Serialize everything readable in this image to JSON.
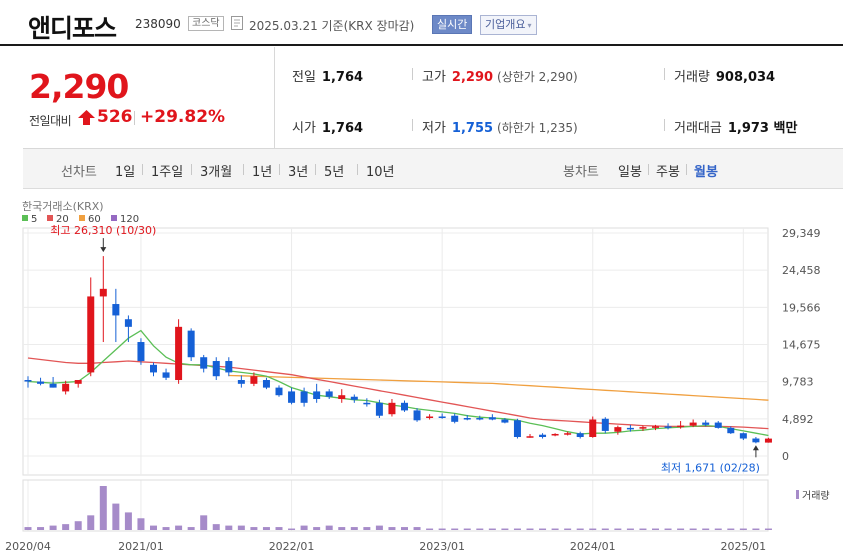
{
  "header": {
    "name": "앤디포스",
    "code": "238090",
    "market": "코스닥",
    "date": "2025.03.21  기준(KRX 장마감)",
    "realtime_btn": "실시간",
    "company_btn": "기업개요",
    "company_caret": "▾"
  },
  "quote": {
    "price": "2,290",
    "change_label": "전일대비",
    "change_amount": "526",
    "change_rate": "+29.82%",
    "prev_close_label": "전일",
    "prev_close": "1,764",
    "high_label": "고가",
    "high": "2,290",
    "upper_limit": "(상한가 2,290)",
    "volume_label": "거래량",
    "volume": "908,034",
    "open_label": "시가",
    "open": "1,764",
    "low_label": "저가",
    "low": "1,755",
    "lower_limit": "(하한가 1,235)",
    "amount_label": "거래대금",
    "amount": "1,973 백만"
  },
  "periods": {
    "line_label": "선차트",
    "line_items": [
      "1일",
      "1주일",
      "3개월",
      "1년",
      "3년",
      "5년",
      "10년"
    ],
    "candle_label": "봉차트",
    "candle_items": [
      "일봉",
      "주봉",
      "월봉"
    ],
    "active": "월봉"
  },
  "colors": {
    "up": "#e0151c",
    "down": "#1560d6",
    "ma5": "#5bbf56",
    "ma20": "#e25555",
    "ma60": "#f0a040",
    "ma120": "#9569c2",
    "volume": "#a68bc9"
  },
  "chart_data": {
    "type": "candlestick",
    "source": "한국거래소(KRX)",
    "legend": [
      {
        "name": "5",
        "color": "#5bbf56"
      },
      {
        "name": "20",
        "color": "#e25555"
      },
      {
        "name": "60",
        "color": "#f0a040"
      },
      {
        "name": "120",
        "color": "#9569c2"
      }
    ],
    "y_ticks": [
      29349,
      24458,
      19566,
      14675,
      9783,
      4892,
      0
    ],
    "y_tick_labels": [
      "29,349",
      "24,458",
      "19,566",
      "14,675",
      "9,783",
      "4,892",
      "0"
    ],
    "ylim": [
      0,
      29349
    ],
    "x_tick_labels": [
      {
        "label": "2020/04",
        "index": 0
      },
      {
        "label": "2021/01",
        "index": 9
      },
      {
        "label": "2022/01",
        "index": 21
      },
      {
        "label": "2023/01",
        "index": 33
      },
      {
        "label": "2024/01",
        "index": 45
      },
      {
        "label": "2025/01",
        "index": 57
      }
    ],
    "high_annotation": {
      "text": "최고 26,310 (10/30)",
      "index": 6,
      "value": 26310
    },
    "low_annotation": {
      "text": "최저 1,671 (02/28)",
      "index": 58,
      "value": 1671
    },
    "volume_label": "거래량",
    "candles": [
      {
        "o": 10000,
        "h": 10500,
        "l": 9000,
        "c": 9800
      },
      {
        "o": 9800,
        "h": 10300,
        "l": 9300,
        "c": 9500
      },
      {
        "o": 9500,
        "h": 10400,
        "l": 9000,
        "c": 9000
      },
      {
        "o": 8500,
        "h": 9900,
        "l": 8100,
        "c": 9500
      },
      {
        "o": 9500,
        "h": 10000,
        "l": 9000,
        "c": 10000
      },
      {
        "o": 11000,
        "h": 23500,
        "l": 10500,
        "c": 21000
      },
      {
        "o": 21000,
        "h": 26310,
        "l": 15000,
        "c": 22000
      },
      {
        "o": 20000,
        "h": 22000,
        "l": 15000,
        "c": 18500
      },
      {
        "o": 18000,
        "h": 18500,
        "l": 15000,
        "c": 17000
      },
      {
        "o": 15000,
        "h": 15500,
        "l": 12000,
        "c": 12500
      },
      {
        "o": 12000,
        "h": 12300,
        "l": 10500,
        "c": 11000
      },
      {
        "o": 11000,
        "h": 11500,
        "l": 10000,
        "c": 10300
      },
      {
        "o": 10000,
        "h": 18000,
        "l": 9500,
        "c": 17000
      },
      {
        "o": 16500,
        "h": 16800,
        "l": 12500,
        "c": 13000
      },
      {
        "o": 13000,
        "h": 13300,
        "l": 11000,
        "c": 11500
      },
      {
        "o": 12500,
        "h": 13000,
        "l": 10000,
        "c": 10500
      },
      {
        "o": 12500,
        "h": 13000,
        "l": 10500,
        "c": 11000
      },
      {
        "o": 10000,
        "h": 10600,
        "l": 9000,
        "c": 9500
      },
      {
        "o": 9500,
        "h": 11000,
        "l": 9200,
        "c": 10500
      },
      {
        "o": 10000,
        "h": 10300,
        "l": 8800,
        "c": 9000
      },
      {
        "o": 9000,
        "h": 9300,
        "l": 7800,
        "c": 8000
      },
      {
        "o": 8500,
        "h": 9000,
        "l": 6800,
        "c": 7000
      },
      {
        "o": 8500,
        "h": 9000,
        "l": 6500,
        "c": 7000
      },
      {
        "o": 8500,
        "h": 9500,
        "l": 7000,
        "c": 7500
      },
      {
        "o": 8500,
        "h": 8800,
        "l": 7500,
        "c": 7800
      },
      {
        "o": 7500,
        "h": 8800,
        "l": 7000,
        "c": 8000
      },
      {
        "o": 7800,
        "h": 8100,
        "l": 7000,
        "c": 7400
      },
      {
        "o": 7000,
        "h": 7600,
        "l": 6500,
        "c": 6800
      },
      {
        "o": 7000,
        "h": 7400,
        "l": 5000,
        "c": 5300
      },
      {
        "o": 5500,
        "h": 7500,
        "l": 5200,
        "c": 7000
      },
      {
        "o": 7000,
        "h": 7300,
        "l": 5800,
        "c": 6000
      },
      {
        "o": 6000,
        "h": 6300,
        "l": 4500,
        "c": 4700
      },
      {
        "o": 5000,
        "h": 5500,
        "l": 4800,
        "c": 5200
      },
      {
        "o": 5200,
        "h": 5600,
        "l": 4900,
        "c": 5100
      },
      {
        "o": 5300,
        "h": 5600,
        "l": 4300,
        "c": 4500
      },
      {
        "o": 5000,
        "h": 5400,
        "l": 4700,
        "c": 4800
      },
      {
        "o": 5000,
        "h": 5300,
        "l": 4700,
        "c": 4900
      },
      {
        "o": 5100,
        "h": 5500,
        "l": 4700,
        "c": 4800
      },
      {
        "o": 4800,
        "h": 5000,
        "l": 4300,
        "c": 4400
      },
      {
        "o": 4700,
        "h": 4900,
        "l": 2300,
        "c": 2500
      },
      {
        "o": 2500,
        "h": 2900,
        "l": 2400,
        "c": 2600
      },
      {
        "o": 2800,
        "h": 3000,
        "l": 2300,
        "c": 2500
      },
      {
        "o": 2700,
        "h": 3000,
        "l": 2600,
        "c": 2900
      },
      {
        "o": 2900,
        "h": 3200,
        "l": 2700,
        "c": 3000
      },
      {
        "o": 3000,
        "h": 3200,
        "l": 2300,
        "c": 2500
      },
      {
        "o": 2500,
        "h": 5200,
        "l": 2400,
        "c": 4800
      },
      {
        "o": 4900,
        "h": 5100,
        "l": 3000,
        "c": 3300
      },
      {
        "o": 3200,
        "h": 4000,
        "l": 2800,
        "c": 3800
      },
      {
        "o": 3700,
        "h": 4100,
        "l": 3200,
        "c": 3600
      },
      {
        "o": 3600,
        "h": 4000,
        "l": 3300,
        "c": 3800
      },
      {
        "o": 3800,
        "h": 4100,
        "l": 3400,
        "c": 3900
      },
      {
        "o": 3900,
        "h": 4300,
        "l": 3500,
        "c": 3800
      },
      {
        "o": 3800,
        "h": 4600,
        "l": 3600,
        "c": 4000
      },
      {
        "o": 4000,
        "h": 4800,
        "l": 3800,
        "c": 4400
      },
      {
        "o": 4400,
        "h": 4700,
        "l": 3900,
        "c": 4100
      },
      {
        "o": 4400,
        "h": 4600,
        "l": 3600,
        "c": 3700
      },
      {
        "o": 3700,
        "h": 3900,
        "l": 2900,
        "c": 3000
      },
      {
        "o": 3000,
        "h": 3100,
        "l": 2100,
        "c": 2300
      },
      {
        "o": 2300,
        "h": 2500,
        "l": 1671,
        "c": 1800
      },
      {
        "o": 1764,
        "h": 2400,
        "l": 1755,
        "c": 2290
      }
    ],
    "ma5": [
      9800,
      9700,
      9600,
      9700,
      9800,
      11000,
      12500,
      14000,
      15500,
      16500,
      14500,
      13000,
      12200,
      12000,
      12000,
      11600,
      11200,
      11000,
      10800,
      10500,
      9800,
      9000,
      8500,
      8000,
      7800,
      7600,
      7400,
      7300,
      7000,
      6700,
      6500,
      6200,
      6000,
      5800,
      5600,
      5300,
      5100,
      5000,
      4900,
      4700,
      4300,
      4000,
      3600,
      3200,
      2900,
      3000,
      3000,
      3100,
      3300,
      3400,
      3600,
      3700,
      3800,
      3900,
      4000,
      3900,
      3600,
      3300,
      3000,
      2700
    ],
    "ma20": [
      12900,
      12700,
      12500,
      12300,
      12200,
      12200,
      12300,
      12400,
      12500,
      12400,
      12300,
      12200,
      12100,
      12000,
      11900,
      11800,
      11700,
      11500,
      11300,
      11100,
      10900,
      10700,
      10400,
      10100,
      9800,
      9500,
      9200,
      8900,
      8600,
      8300,
      8000,
      7700,
      7400,
      7100,
      6800,
      6500,
      6200,
      5900,
      5600,
      5300,
      5000,
      4800,
      4700,
      4600,
      4500,
      4400,
      4300,
      4200,
      4100,
      4000,
      3950,
      3900,
      3900,
      3900,
      3900,
      3900,
      3850,
      3800,
      3700,
      3600
    ],
    "ma60": [
      null,
      null,
      null,
      null,
      null,
      null,
      null,
      null,
      null,
      null,
      null,
      null,
      null,
      null,
      null,
      null,
      10600,
      10550,
      10500,
      10450,
      10400,
      10350,
      10300,
      10250,
      10200,
      10150,
      10100,
      10050,
      10000,
      9950,
      9900,
      9850,
      9800,
      9750,
      9700,
      9650,
      9600,
      9550,
      9450,
      9350,
      9250,
      9150,
      9050,
      8950,
      8850,
      8750,
      8650,
      8550,
      8450,
      8350,
      8250,
      8150,
      8050,
      7950,
      7850,
      7750,
      7650,
      7550,
      7450,
      7350
    ],
    "volume": [
      2,
      2,
      3,
      4,
      6,
      10,
      30,
      18,
      12,
      8,
      3,
      2,
      3,
      2,
      10,
      4,
      3,
      3,
      2,
      2,
      2,
      1,
      3,
      2,
      3,
      2,
      2,
      2,
      3,
      2,
      2,
      2,
      1,
      1,
      1,
      1,
      1,
      1,
      1,
      1,
      1,
      1,
      1,
      1,
      1,
      1,
      1,
      1,
      1,
      1,
      1,
      1,
      1,
      1,
      1,
      1,
      1,
      1,
      1,
      1
    ]
  }
}
